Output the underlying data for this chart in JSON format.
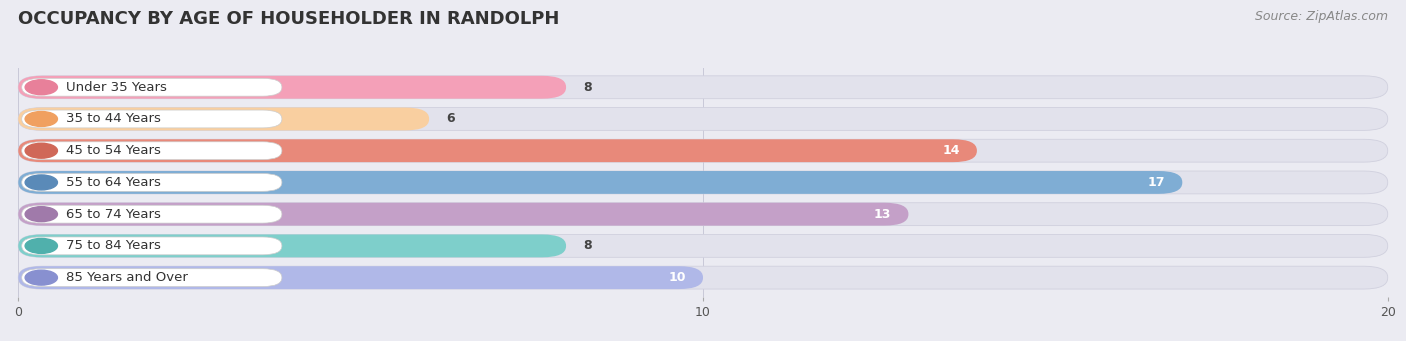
{
  "title": "OCCUPANCY BY AGE OF HOUSEHOLDER IN RANDOLPH",
  "source": "Source: ZipAtlas.com",
  "categories": [
    "Under 35 Years",
    "35 to 44 Years",
    "45 to 54 Years",
    "55 to 64 Years",
    "65 to 74 Years",
    "75 to 84 Years",
    "85 Years and Over"
  ],
  "values": [
    8,
    6,
    14,
    17,
    13,
    8,
    10
  ],
  "bar_colors": [
    "#f4a0b8",
    "#f9cfa0",
    "#e8897a",
    "#7fadd4",
    "#c4a0c8",
    "#7ecfcb",
    "#b0b8e8"
  ],
  "label_dot_colors": [
    "#e8809a",
    "#f0a060",
    "#d06858",
    "#5a8ab8",
    "#a07aaa",
    "#50b0ac",
    "#8890d0"
  ],
  "xlim": [
    0,
    20
  ],
  "xticks": [
    0,
    10,
    20
  ],
  "background_color": "#ebebf2",
  "bar_background_color": "#e2e2ec",
  "title_fontsize": 13,
  "source_fontsize": 9,
  "label_fontsize": 9.5,
  "value_fontsize": 9,
  "bar_height": 0.72,
  "bar_gap": 1.0
}
